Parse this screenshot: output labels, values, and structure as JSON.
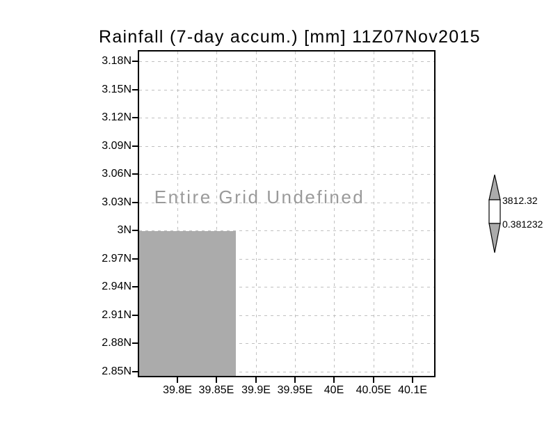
{
  "title": "Rainfall (7-day accum.) [mm] 11Z07Nov2015",
  "plot": {
    "message": "Entire Grid Undefined"
  },
  "axes": {
    "y_labels": [
      "3.18N",
      "3.15N",
      "3.12N",
      "3.09N",
      "3.06N",
      "3.03N",
      "3N",
      "2.97N",
      "2.94N",
      "2.91N",
      "2.88N",
      "2.85N"
    ],
    "x_labels": [
      "39.8E",
      "39.85E",
      "39.9E",
      "39.95E",
      "40E",
      "40.05E",
      "40.1E"
    ]
  },
  "colorbar": {
    "max_label": "3812.32",
    "min_label": "0.381232"
  },
  "colors": {
    "shade_gray": "#ababab",
    "gridline": "#c0c0c0",
    "message_gray": "#9a9a9a",
    "frame": "#000000"
  },
  "chart_data": {
    "type": "heatmap",
    "title": "Rainfall (7-day accum.) [mm] 11Z07Nov2015",
    "x_tick_labels": [
      "39.8E",
      "39.85E",
      "39.9E",
      "39.95E",
      "40E",
      "40.05E",
      "40.1E"
    ],
    "y_tick_labels": [
      "3.18N",
      "3.15N",
      "3.12N",
      "3.09N",
      "3.06N",
      "3.03N",
      "3N",
      "2.97N",
      "2.94N",
      "2.91N",
      "2.88N",
      "2.85N"
    ],
    "xlim_deg_east": [
      39.75,
      40.13
    ],
    "ylim_deg_north": [
      2.845,
      3.19
    ],
    "grid": true,
    "grid_style": "dashed",
    "annotation": "Entire Grid Undefined",
    "data_values": "all grid values undefined (no shaded data field rendered)",
    "colorbar_levels": [
      0.381232,
      3812.32
    ],
    "legend_position": "right",
    "shaded_region": {
      "x_deg_east": [
        39.75,
        39.875
      ],
      "y_deg_north": [
        2.845,
        3.0
      ],
      "color": "#ababab"
    }
  }
}
